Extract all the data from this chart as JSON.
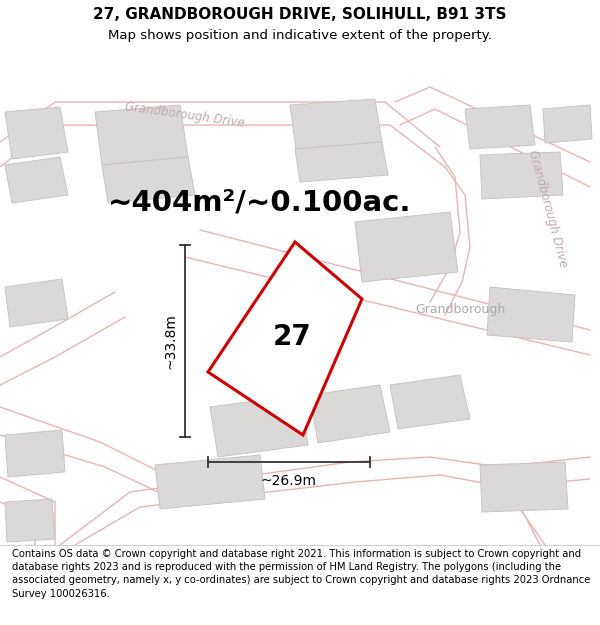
{
  "title_line1": "27, GRANDBOROUGH DRIVE, SOLIHULL, B91 3TS",
  "title_line2": "Map shows position and indicative extent of the property.",
  "area_text": "~404m²/~0.100ac.",
  "label_number": "27",
  "dim_height": "~33.8m",
  "dim_width": "~26.9m",
  "footer_text": "Contains OS data © Crown copyright and database right 2021. This information is subject to Crown copyright and database rights 2023 and is reproduced with the permission of HM Land Registry. The polygons (including the associated geometry, namely x, y co-ordinates) are subject to Crown copyright and database rights 2023 Ordnance Survey 100026316.",
  "bg_color": "#f7f4f4",
  "road_color": "#e8b4b4",
  "building_color": "#dbd8d8",
  "building_edge": "#c8c4c4",
  "plot_fill": "#ffffff",
  "plot_edge": "#cc0000",
  "dim_color": "#333333",
  "text_color": "#000000",
  "street_color": "#c0aaaa",
  "title_fontsize": 11,
  "subtitle_fontsize": 9.5,
  "area_fontsize": 21,
  "number_fontsize": 20,
  "dim_fontsize": 10,
  "footer_fontsize": 7.2
}
